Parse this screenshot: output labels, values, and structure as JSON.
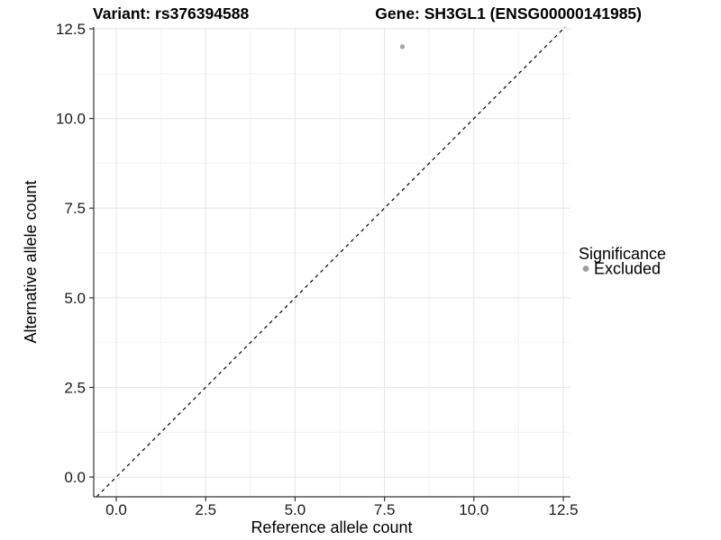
{
  "titles": {
    "variant": "Variant: rs376394588",
    "gene": "Gene: SH3GL1 (ENSG00000141985)"
  },
  "chart_data": {
    "type": "scatter",
    "title": "Variant: rs376394588    Gene: SH3GL1 (ENSG00000141985)",
    "xlabel": "Reference allele count",
    "ylabel": "Alternative allele count",
    "xlim": [
      -0.63,
      12.7
    ],
    "ylim": [
      -0.55,
      12.55
    ],
    "x_ticks": {
      "values": [
        0,
        2.5,
        5,
        7.5,
        10,
        12.5
      ],
      "labels": [
        "0.0",
        "2.5",
        "5.0",
        "7.5",
        "10.0",
        "12.5"
      ]
    },
    "y_ticks": {
      "values": [
        0,
        2.5,
        5,
        7.5,
        10,
        12.5
      ],
      "labels": [
        "0.0",
        "2.5",
        "5.0",
        "7.5",
        "10.0",
        "12.5"
      ]
    },
    "minor_ticks": [
      1.25,
      3.75,
      6.25,
      8.75,
      11.25
    ],
    "grid": true,
    "reference_line": {
      "type": "y=x",
      "style": "dashed",
      "color": "#000000"
    },
    "series": [
      {
        "name": "Excluded",
        "color": "#a8a8a8",
        "points": [
          {
            "x": 8,
            "y": 12
          }
        ]
      }
    ],
    "legend": {
      "title": "Significance",
      "position": "right",
      "items": [
        {
          "label": "Excluded",
          "color": "#9e9e9e"
        }
      ]
    },
    "colors": {
      "grid_major": "#e5e5e5",
      "grid_minor": "#f2f2f2",
      "axis_line": "#333333",
      "tick_text": "#1a1a1a",
      "point": "#a8a8a8"
    }
  }
}
